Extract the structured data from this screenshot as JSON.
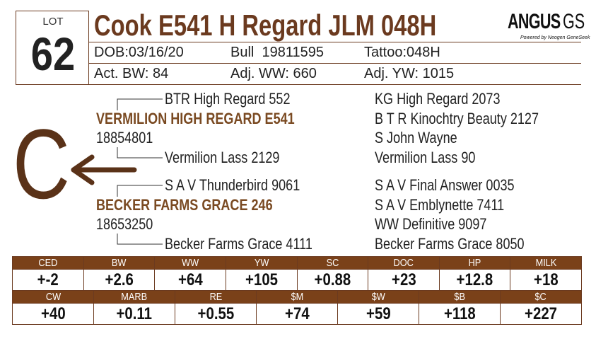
{
  "lot": {
    "label": "LOT",
    "number": "62"
  },
  "title": "Cook E541 H Regard JLM 048H",
  "logo": {
    "brand": "ANGUS",
    "suffix": "GS",
    "tagline": "Powered by Neogen GeneSeek"
  },
  "info": [
    [
      "DOB:03/16/20",
      "Bull  19811595",
      "Tattoo:048H"
    ],
    [
      "Act. BW: 84",
      "Adj. WW: 660",
      "Adj. YW: 1015"
    ]
  ],
  "mark": "C",
  "pedigree": {
    "sire_sire": "BTR High Regard 552",
    "sire": "VERMILION HIGH REGARD E541",
    "sire_reg": "18854801",
    "sire_dam": "Vermilion Lass 2129",
    "dam_sire": "S A V Thunderbird 9061",
    "dam": "BECKER FARMS GRACE 246",
    "dam_reg": "18653250",
    "dam_dam": "Becker Farms Grace 4111",
    "outer": [
      "KG High Regard 2073",
      "B T R Kinochtry Beauty 2127",
      "S John Wayne",
      "Vermilion Lass 90",
      "S A V Final Answer 0035",
      "S A V Emblynette 7411",
      "WW Definitive 9097",
      "Becker Farms Grace 8050"
    ]
  },
  "epd_tables": [
    {
      "headers": [
        "CED",
        "BW",
        "WW",
        "YW",
        "SC",
        "DOC",
        "HP",
        "MILK"
      ],
      "values": [
        "+-2",
        "+2.6",
        "+64",
        "+105",
        "+0.88",
        "+23",
        "+12.8",
        "+18"
      ]
    },
    {
      "headers": [
        "CW",
        "MARB",
        "RE",
        "$M",
        "$W",
        "$B",
        "$C"
      ],
      "values": [
        "+40",
        "+0.11",
        "+0.55",
        "+74",
        "+59",
        "+118",
        "+227"
      ]
    }
  ]
}
